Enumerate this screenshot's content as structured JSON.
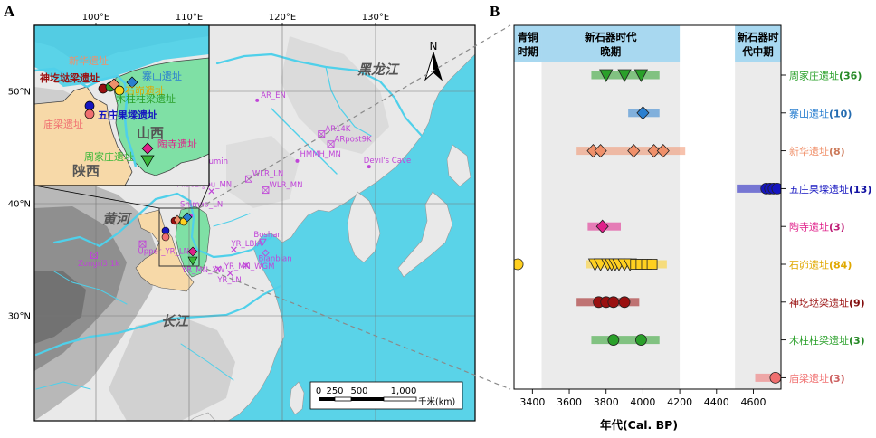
{
  "panel_a": {
    "letter": "A",
    "lon_labels": [
      {
        "lon": 100,
        "text": "100°E"
      },
      {
        "lon": 110,
        "text": "110°E"
      },
      {
        "lon": 120,
        "text": "120°E"
      },
      {
        "lon": 130,
        "text": "130°E"
      }
    ],
    "lat_labels": [
      {
        "lat": 50,
        "text": "50°N"
      },
      {
        "lat": 40,
        "text": "40°N"
      },
      {
        "lat": 30,
        "text": "30°N"
      }
    ],
    "river_labels": {
      "heilongjiang": "黑龙江",
      "huanghe": "黄河",
      "changjiang": "长江"
    },
    "province_labels": {
      "shanxi": "山西",
      "shaanxi": "陕西"
    },
    "north_label": "N",
    "scale": {
      "ticks": [
        "0",
        "250",
        "500",
        "1,000"
      ],
      "unit": "千米(km)"
    },
    "colors": {
      "sea": "#5ad3e8",
      "land": "#e8e8e8",
      "shanxi": "#7fe0a5",
      "shaanxi": "#f7d9a8",
      "site_label": "#c045d8"
    },
    "inset_sites": [
      {
        "name": "新华遗址",
        "color": "#f0906a"
      },
      {
        "name": "神圪垯梁遗址",
        "color": "#9a1010"
      },
      {
        "name": "寨山遗址",
        "color": "#2a7fd0"
      },
      {
        "name": "石峁遗址",
        "color": "#e0a800"
      },
      {
        "name": "木柱柱梁遗址",
        "color": "#2aa02a"
      },
      {
        "name": "五庄果墚遗址",
        "color": "#1515c0"
      },
      {
        "name": "庙梁遗址",
        "color": "#f07070"
      },
      {
        "name": "陶寺遗址",
        "color": "#e0208a"
      },
      {
        "name": "周家庄遗址",
        "color": "#38b838"
      }
    ],
    "ref_sites": [
      {
        "label": "AR_EN",
        "lon": 117.3,
        "lat": 49.2,
        "marker": "dot"
      },
      {
        "label": "AR14K",
        "lon": 124.2,
        "lat": 46.2,
        "marker": "box"
      },
      {
        "label": "ARpost9K",
        "lon": 125.2,
        "lat": 45.3,
        "marker": "box"
      },
      {
        "label": "HMMH_MN",
        "lon": 121.6,
        "lat": 43.8,
        "marker": "dot"
      },
      {
        "label": "Devil's Cave",
        "lon": 129.3,
        "lat": 43.3,
        "marker": "dot"
      },
      {
        "label": "Yumin",
        "lon": 111.3,
        "lat": 43.3,
        "marker": "box"
      },
      {
        "label": "WLR_LN",
        "lon": 116.4,
        "lat": 42.2,
        "marker": "box"
      },
      {
        "label": "WLR_MN",
        "lon": 118.2,
        "lat": 41.2,
        "marker": "box"
      },
      {
        "label": "Miaozigou_MN",
        "lon": 112.4,
        "lat": 41.1,
        "marker": "x"
      },
      {
        "label": "Shimao_LN",
        "lon": 110.2,
        "lat": 38.9,
        "marker": "dot"
      },
      {
        "label": "Upper_YR_LN",
        "lon": 105.0,
        "lat": 36.4,
        "marker": "box"
      },
      {
        "label": "Boshan",
        "lon": 117.9,
        "lat": 36.6,
        "marker": "tri"
      },
      {
        "label": "YR_LBIA",
        "lon": 114.8,
        "lat": 35.9,
        "marker": "x"
      },
      {
        "label": "Bianbian",
        "lon": 118.2,
        "lat": 35.6,
        "marker": "diamond"
      },
      {
        "label": "YR_MN_WGM",
        "lon": 116.1,
        "lat": 34.5,
        "marker": "x"
      },
      {
        "label": "YR_MN_XW",
        "lon": 113.1,
        "lat": 34.2,
        "marker": "x"
      },
      {
        "label": "YR_LN",
        "lon": 114.4,
        "lat": 33.8,
        "marker": "x"
      },
      {
        "label": "Zongri5.1k",
        "lon": 99.8,
        "lat": 35.4,
        "marker": "box"
      }
    ]
  },
  "panel_b": {
    "letter": "B",
    "periods": [
      {
        "label": "青铜\n时期",
        "from": 3300,
        "to": 3450
      },
      {
        "label": "新石器时代\n晚期",
        "from": 3450,
        "to": 4200
      },
      {
        "label": "新石器时\n代中期",
        "from": 4500,
        "to": 4750
      }
    ],
    "period_colors": {
      "header": "#a8d8f0",
      "bg": "#ebebeb"
    },
    "chart_data": {
      "type": "scatter",
      "xlabel": "年代(Cal. BP)",
      "xlim": [
        3300,
        4750
      ],
      "xticks": [
        3400,
        3600,
        3800,
        4000,
        4200,
        4400,
        4600
      ],
      "rows": [
        {
          "label": "周家庄遗址",
          "count": "(36)",
          "color": "#2aa02a",
          "marker": "triangle",
          "range": [
            3720,
            4090
          ],
          "values": [
            3800,
            3900,
            3990
          ]
        },
        {
          "label": "寨山遗址",
          "count": "(10)",
          "color": "#2a7fd0",
          "marker": "diamond",
          "range": [
            3920,
            4090
          ],
          "values": [
            4000
          ]
        },
        {
          "label": "新华遗址",
          "count": "(8)",
          "color": "#f0906a",
          "marker": "diamond",
          "range": [
            3640,
            4230
          ],
          "values": [
            3730,
            3770,
            3950,
            4060,
            4110
          ]
        },
        {
          "label": "五庄果墚遗址",
          "count": "(13)",
          "color": "#1515c0",
          "marker": "circle",
          "range": [
            4510,
            4750
          ],
          "values": [
            4670,
            4690,
            4710,
            4730
          ]
        },
        {
          "label": "陶寺遗址",
          "count": "(3)",
          "color": "#e0208a",
          "marker": "diamond",
          "range": [
            3700,
            3880
          ],
          "values": [
            3780
          ]
        },
        {
          "label": "石峁遗址",
          "count": "(84)",
          "color": "#ffd020",
          "marker": "triangle_square",
          "range": [
            3690,
            4130
          ],
          "values": [
            3740,
            3770,
            3810,
            3830,
            3850,
            3870,
            3900,
            3930,
            3960,
            3990,
            4020,
            4050
          ],
          "outlier": 3320,
          "outlier_range": [
            3300,
            3340
          ]
        },
        {
          "label": "神圪垯梁遗址",
          "count": "(9)",
          "color": "#9a1010",
          "marker": "circle",
          "range": [
            3640,
            3980
          ],
          "values": [
            3760,
            3800,
            3840,
            3900
          ]
        },
        {
          "label": "木柱柱梁遗址",
          "count": "(3)",
          "color": "#2aa02a",
          "marker": "circle",
          "range": [
            3720,
            4090
          ],
          "values": [
            3840,
            3990
          ]
        },
        {
          "label": "庙梁遗址",
          "count": "(3)",
          "color": "#f07070",
          "marker": "circle",
          "range": [
            4610,
            4750
          ],
          "values": [
            4720
          ]
        }
      ]
    }
  }
}
